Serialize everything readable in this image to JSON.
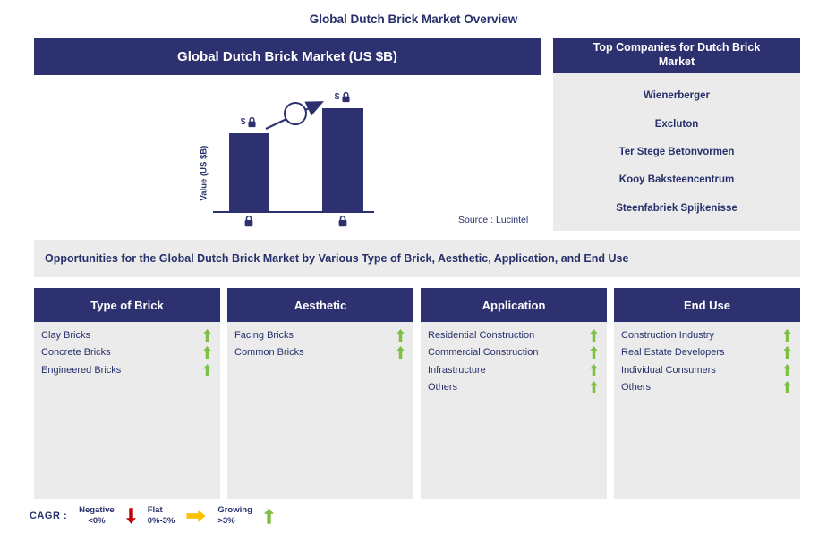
{
  "page": {
    "title": "Global Dutch Brick Market Overview"
  },
  "market_panel": {
    "header": "Global Dutch Brick Market (US $B)",
    "y_axis_label": "Value (US $B)",
    "bar_value_label": "$",
    "source": "Source : Lucintel"
  },
  "companies_panel": {
    "header": "Top Companies for Dutch Brick Market",
    "companies": [
      "Wienerberger",
      "Excluton",
      "Ter Stege Betonvormen",
      "Kooy Baksteencentrum",
      "Steenfabriek Spijkenisse"
    ]
  },
  "opportunities_banner": "Opportunities for the Global Dutch Brick Market by Various Type of Brick, Aesthetic, Application, and End Use",
  "segments": [
    {
      "header": "Type of Brick",
      "items": [
        {
          "label": "Clay Bricks",
          "trend": "growing"
        },
        {
          "label": "Concrete Bricks",
          "trend": "growing"
        },
        {
          "label": "Engineered Bricks",
          "trend": "growing"
        }
      ]
    },
    {
      "header": "Aesthetic",
      "items": [
        {
          "label": "Facing Bricks",
          "trend": "growing"
        },
        {
          "label": "Common Bricks",
          "trend": "growing"
        }
      ]
    },
    {
      "header": "Application",
      "items": [
        {
          "label": "Residential Construction",
          "trend": "growing"
        },
        {
          "label": "Commercial Construction",
          "trend": "growing"
        },
        {
          "label": "Infrastructure",
          "trend": "growing"
        },
        {
          "label": "Others",
          "trend": "growing"
        }
      ]
    },
    {
      "header": "End Use",
      "items": [
        {
          "label": "Construction Industry",
          "trend": "growing"
        },
        {
          "label": "Real Estate Developers",
          "trend": "growing"
        },
        {
          "label": "Individual Consumers",
          "trend": "growing"
        },
        {
          "label": "Others",
          "trend": "growing"
        }
      ]
    }
  ],
  "legend": {
    "label": "CAGR :",
    "entries": [
      {
        "name": "Negative",
        "range": "<0%",
        "direction": "down",
        "color": "#c00000"
      },
      {
        "name": "Flat",
        "range": "0%-3%",
        "direction": "right",
        "color": "#ffc000"
      },
      {
        "name": "Growing",
        "range": ">3%",
        "direction": "up",
        "color": "#7dc142"
      }
    ]
  },
  "colors": {
    "navy": "#2d3170",
    "panel_gray": "#ebebeb",
    "growing_green": "#7dc142",
    "negative_red": "#c00000",
    "flat_yellow": "#ffc000"
  },
  "chart_data": {
    "type": "bar",
    "title": "Global Dutch Brick Market (US $B)",
    "xlabel": "",
    "ylabel": "Value (US $B)",
    "categories": [
      "(locked)",
      "(locked)"
    ],
    "values": [
      null,
      null
    ],
    "values_hidden_by_lock": true,
    "relative_heights_pct": [
      76,
      100
    ],
    "bar_value_labels": [
      "$",
      "$"
    ],
    "annotations": [
      "upward growth arrow with circle from first bar to second bar"
    ],
    "legend_position": "none",
    "grid": false,
    "source": "Source : Lucintel"
  }
}
